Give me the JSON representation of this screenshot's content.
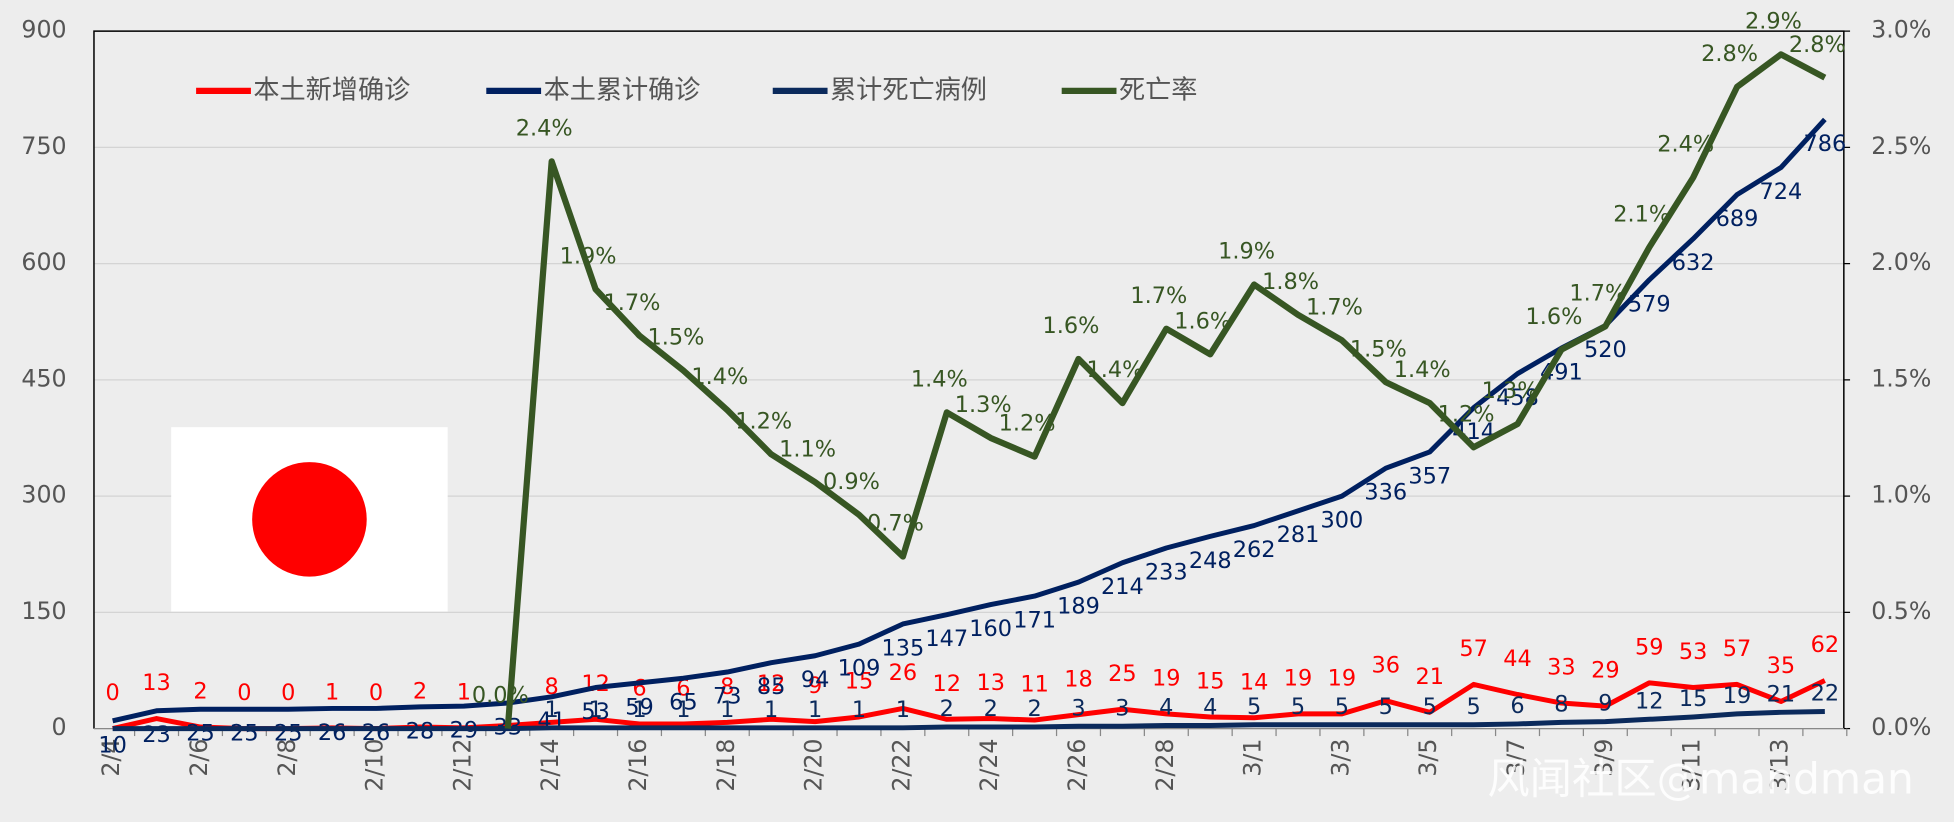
{
  "chart_data": {
    "type": "line",
    "categories": [
      "2/4",
      null,
      "2/6",
      null,
      "2/8",
      null,
      "2/10",
      null,
      "2/12",
      null,
      "2/14",
      null,
      "2/16",
      null,
      "2/18",
      null,
      "2/20",
      null,
      "2/22",
      null,
      "2/24",
      null,
      "2/26",
      null,
      "2/28",
      null,
      "3/1",
      null,
      "3/3",
      null,
      "3/5",
      null,
      "3/7",
      null,
      "3/9",
      null,
      "3/11",
      null,
      "3/13",
      null
    ],
    "series": [
      {
        "name": "本土新增确诊",
        "color": "#ff0000",
        "axis": "y",
        "values": [
          0,
          13,
          2,
          0,
          0,
          1,
          0,
          2,
          1,
          4,
          8,
          12,
          6,
          6,
          8,
          12,
          9,
          15,
          26,
          12,
          13,
          11,
          18,
          25,
          19,
          15,
          14,
          19,
          19,
          36,
          21,
          57,
          44,
          33,
          29,
          59,
          53,
          57,
          35,
          62
        ],
        "value_labels": [
          "0",
          "13",
          "2",
          "0",
          "0",
          "1",
          "0",
          "2",
          "1",
          null,
          "8",
          "12",
          "6",
          "6",
          "8",
          "12",
          "9",
          "15",
          "26",
          "12",
          "13",
          "11",
          "18",
          "25",
          "19",
          "15",
          "14",
          "19",
          "19",
          "36",
          "21",
          "57",
          "44",
          "33",
          "29",
          "59",
          "53",
          "57",
          "35",
          "62"
        ]
      },
      {
        "name": "本土累计确诊",
        "color": "#002060",
        "axis": "y",
        "values": [
          10,
          23,
          25,
          25,
          25,
          26,
          26,
          28,
          29,
          33,
          41,
          53,
          59,
          65,
          73,
          85,
          94,
          109,
          135,
          147,
          160,
          171,
          189,
          214,
          233,
          248,
          262,
          281,
          300,
          336,
          357,
          414,
          458,
          491,
          520,
          579,
          632,
          689,
          724,
          786
        ]
      },
      {
        "name": "累计死亡病例",
        "color": "#0b2a5c",
        "axis": "y",
        "values": [
          0,
          0,
          0,
          0,
          0,
          0,
          0,
          0,
          0,
          0,
          1,
          1,
          1,
          1,
          1,
          1,
          1,
          1,
          1,
          2,
          2,
          2,
          3,
          3,
          4,
          4,
          5,
          5,
          5,
          5,
          5,
          5,
          6,
          8,
          9,
          12,
          15,
          19,
          21,
          22
        ],
        "value_labels": [
          null,
          null,
          null,
          null,
          null,
          null,
          null,
          null,
          null,
          null,
          "1",
          "1",
          "1",
          "1",
          "1",
          "1",
          "1",
          "1",
          "1",
          "2",
          "2",
          "2",
          "3",
          "3",
          "4",
          "4",
          "5",
          "5",
          "5",
          "5",
          "5",
          "5",
          "6",
          "8",
          "9",
          "12",
          "15",
          "19",
          "21",
          "22"
        ]
      },
      {
        "name": "死亡率",
        "color": "#375623",
        "axis": "y2",
        "values": [
          null,
          null,
          null,
          null,
          null,
          null,
          null,
          null,
          null,
          0,
          2.44,
          1.89,
          1.69,
          1.54,
          1.37,
          1.18,
          1.06,
          0.92,
          0.74,
          1.36,
          1.25,
          1.17,
          1.59,
          1.4,
          1.72,
          1.61,
          1.91,
          1.78,
          1.67,
          1.49,
          1.4,
          1.21,
          1.31,
          1.63,
          1.73,
          2.07,
          2.37,
          2.76,
          2.9,
          2.8
        ],
        "value_labels": [
          null,
          null,
          null,
          null,
          null,
          null,
          null,
          null,
          null,
          "0.0%",
          "2.4%",
          "1.9%",
          "1.7%",
          "1.5%",
          "1.4%",
          "1.2%",
          "1.1%",
          "0.9%",
          "0.7%",
          "1.4%",
          "1.3%",
          "1.2%",
          "1.6%",
          "1.4%",
          "1.7%",
          "1.6%",
          "1.9%",
          "1.8%",
          "1.7%",
          "1.5%",
          "1.4%",
          "1.2%",
          "1.3%",
          "1.6%",
          "1.7%",
          "2.1%",
          "2.4%",
          "2.8%",
          "2.9%",
          "2.8%"
        ]
      }
    ],
    "ylim": [
      0,
      900
    ],
    "yticks": [
      0,
      150,
      300,
      450,
      600,
      750,
      900
    ],
    "y2lim": [
      0,
      3
    ],
    "y2ticks": [
      {
        "value": 0,
        "label": "0.0%"
      },
      {
        "value": 0.5,
        "label": "0.5%"
      },
      {
        "value": 1,
        "label": "1.0%"
      },
      {
        "value": 1.5,
        "label": "1.5%"
      },
      {
        "value": 2,
        "label": "2.0%"
      },
      {
        "value": 2.5,
        "label": "2.5%"
      },
      {
        "value": 3,
        "label": "3.0%"
      }
    ],
    "grid": true,
    "legend": "top-left",
    "watermark": "风闻社区@mandman"
  }
}
